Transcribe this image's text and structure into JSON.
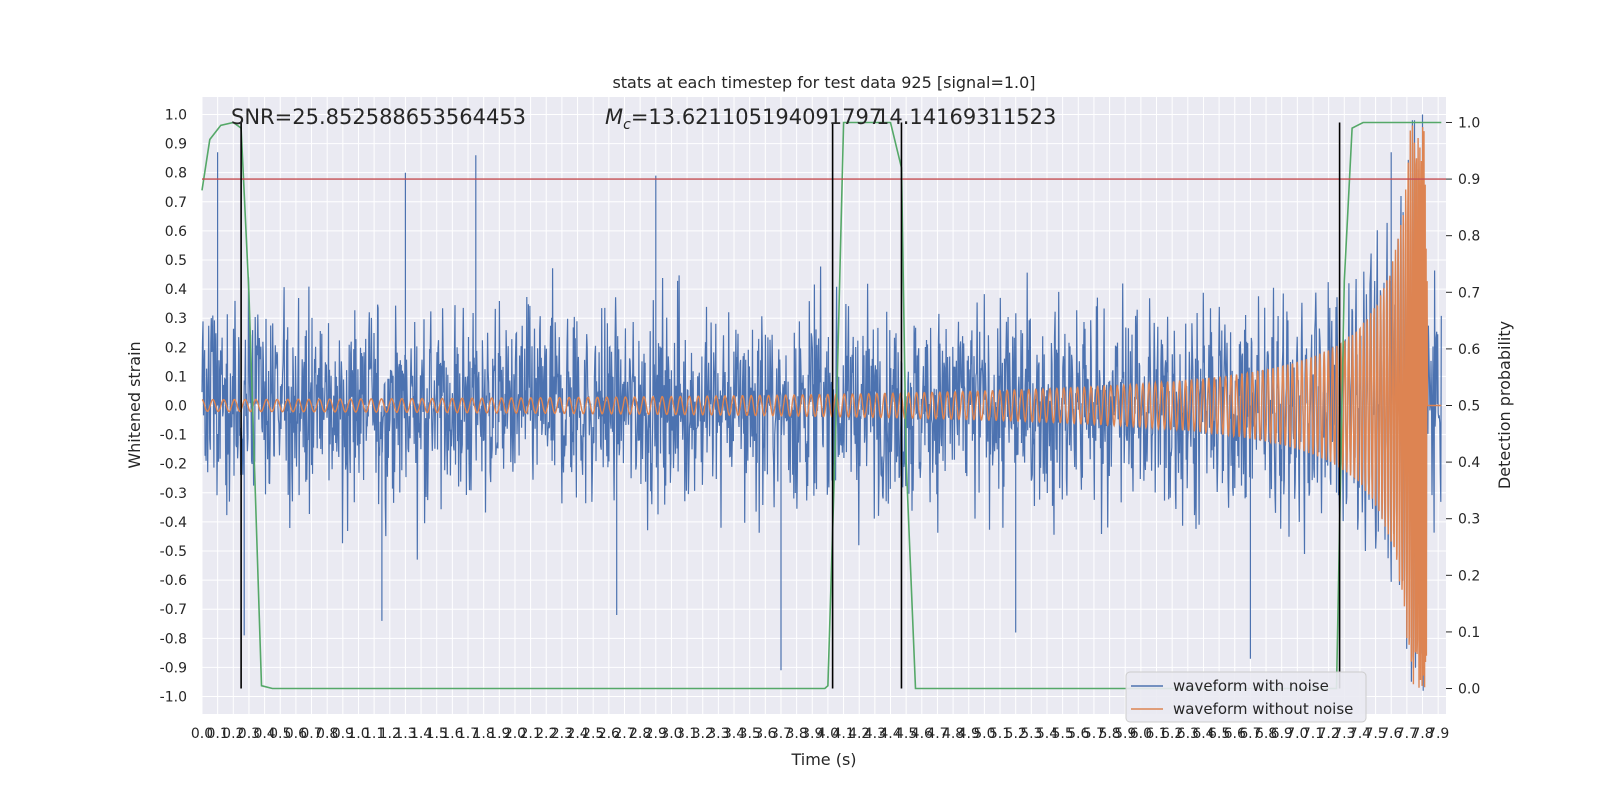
{
  "colors": {
    "noisy": "#4c72b0",
    "clean": "#dd8452",
    "prob": "#55a868",
    "threshold": "#c44e52",
    "marker": "#000000",
    "plot_bg": "#eaeaf2",
    "grid": "#ffffff"
  },
  "chart_data": {
    "type": "line",
    "title": "stats at each timestep for test data 925 [signal=1.0]",
    "xlabel": "Time (s)",
    "ylabel": "Whitened strain",
    "y2label": "Detection probability",
    "xlim": [
      0.0,
      7.95
    ],
    "ylim": [
      -1.06,
      1.06
    ],
    "y2lim": [
      -0.045,
      1.045
    ],
    "grid": true,
    "legend_position": "lower-right",
    "x_ticks": [
      "0.0",
      "0.1",
      "0.2",
      "0.3",
      "0.4",
      "0.5",
      "0.6",
      "0.7",
      "0.8",
      "0.9",
      "1.0",
      "1.1",
      "1.2",
      "1.3",
      "1.4",
      "1.5",
      "1.6",
      "1.7",
      "1.8",
      "1.9",
      "2.0",
      "2.1",
      "2.2",
      "2.3",
      "2.4",
      "2.5",
      "2.6",
      "2.7",
      "2.8",
      "2.9",
      "3.0",
      "3.1",
      "3.2",
      "3.3",
      "3.4",
      "3.5",
      "3.6",
      "3.7",
      "3.8",
      "3.9",
      "4.0",
      "4.1",
      "4.2",
      "4.3",
      "4.4",
      "4.5",
      "4.6",
      "4.7",
      "4.8",
      "4.9",
      "5.0",
      "5.1",
      "5.2",
      "5.3",
      "5.4",
      "5.5",
      "5.6",
      "5.7",
      "5.8",
      "5.9",
      "6.0",
      "6.1",
      "6.2",
      "6.3",
      "6.4",
      "6.5",
      "6.6",
      "6.7",
      "6.8",
      "6.9",
      "7.0",
      "7.1",
      "7.2",
      "7.3",
      "7.4",
      "7.5",
      "7.6",
      "7.7",
      "7.8",
      "7.9"
    ],
    "y_ticks": [
      "1.0",
      "0.9",
      "0.8",
      "0.7",
      "0.6",
      "0.5",
      "0.4",
      "0.3",
      "0.2",
      "0.1",
      "0.0",
      "-0.1",
      "-0.2",
      "-0.3",
      "-0.4",
      "-0.5",
      "-0.6",
      "-0.7",
      "-0.8",
      "-0.9",
      "-1.0"
    ],
    "y2_ticks": [
      "1.0",
      "0.9",
      "0.8",
      "0.7",
      "0.6",
      "0.5",
      "0.4",
      "0.3",
      "0.2",
      "0.1",
      "0.0"
    ],
    "annotations": {
      "snr": "SNR=25.852588653564453",
      "mc_symbol": "M",
      "mc_sub": "c",
      "mc_value": "=13.621105194091797",
      "overlap": "14.14169311523"
    },
    "threshold_y2": 0.9,
    "markers_x": [
      0.25,
      4.03,
      4.47,
      7.27
    ],
    "series": [
      {
        "name": "waveform with noise",
        "kind": "noise",
        "amplitude_typical": 0.3,
        "peaks": [
          {
            "x": 0.1,
            "y": 0.87
          },
          {
            "x": 1.75,
            "y": 0.86
          },
          {
            "x": 1.3,
            "y": 0.8
          },
          {
            "x": 2.9,
            "y": 0.79
          },
          {
            "x": 3.7,
            "y": -0.91
          },
          {
            "x": 6.7,
            "y": -0.87
          },
          {
            "x": 7.6,
            "y": 0.87
          },
          {
            "x": 7.8,
            "y": 1.0
          },
          {
            "x": 0.27,
            "y": -0.79
          },
          {
            "x": 1.15,
            "y": -0.74
          },
          {
            "x": 2.65,
            "y": -0.72
          },
          {
            "x": 5.2,
            "y": -0.78
          }
        ]
      },
      {
        "name": "waveform without noise",
        "kind": "chirp",
        "t_merge": 7.83,
        "amp_start": 0.02,
        "amp_peak": 0.87,
        "amp_min_trough": -0.97,
        "freq_start_hz": 16
      },
      {
        "name": "detection probability",
        "kind": "probability",
        "axis": "y2",
        "points": [
          [
            0.0,
            0.88
          ],
          [
            0.05,
            0.97
          ],
          [
            0.12,
            0.995
          ],
          [
            0.2,
            1.0
          ],
          [
            0.25,
            0.99
          ],
          [
            0.3,
            0.7
          ],
          [
            0.38,
            0.005
          ],
          [
            0.45,
            0.0
          ],
          [
            3.98,
            0.0
          ],
          [
            4.0,
            0.005
          ],
          [
            4.06,
            0.55
          ],
          [
            4.1,
            1.0
          ],
          [
            4.4,
            1.0
          ],
          [
            4.47,
            0.92
          ],
          [
            4.5,
            0.4
          ],
          [
            4.56,
            0.0
          ],
          [
            7.25,
            0.0
          ],
          [
            7.3,
            0.72
          ],
          [
            7.35,
            0.99
          ],
          [
            7.42,
            1.0
          ],
          [
            7.92,
            1.0
          ]
        ]
      }
    ]
  }
}
